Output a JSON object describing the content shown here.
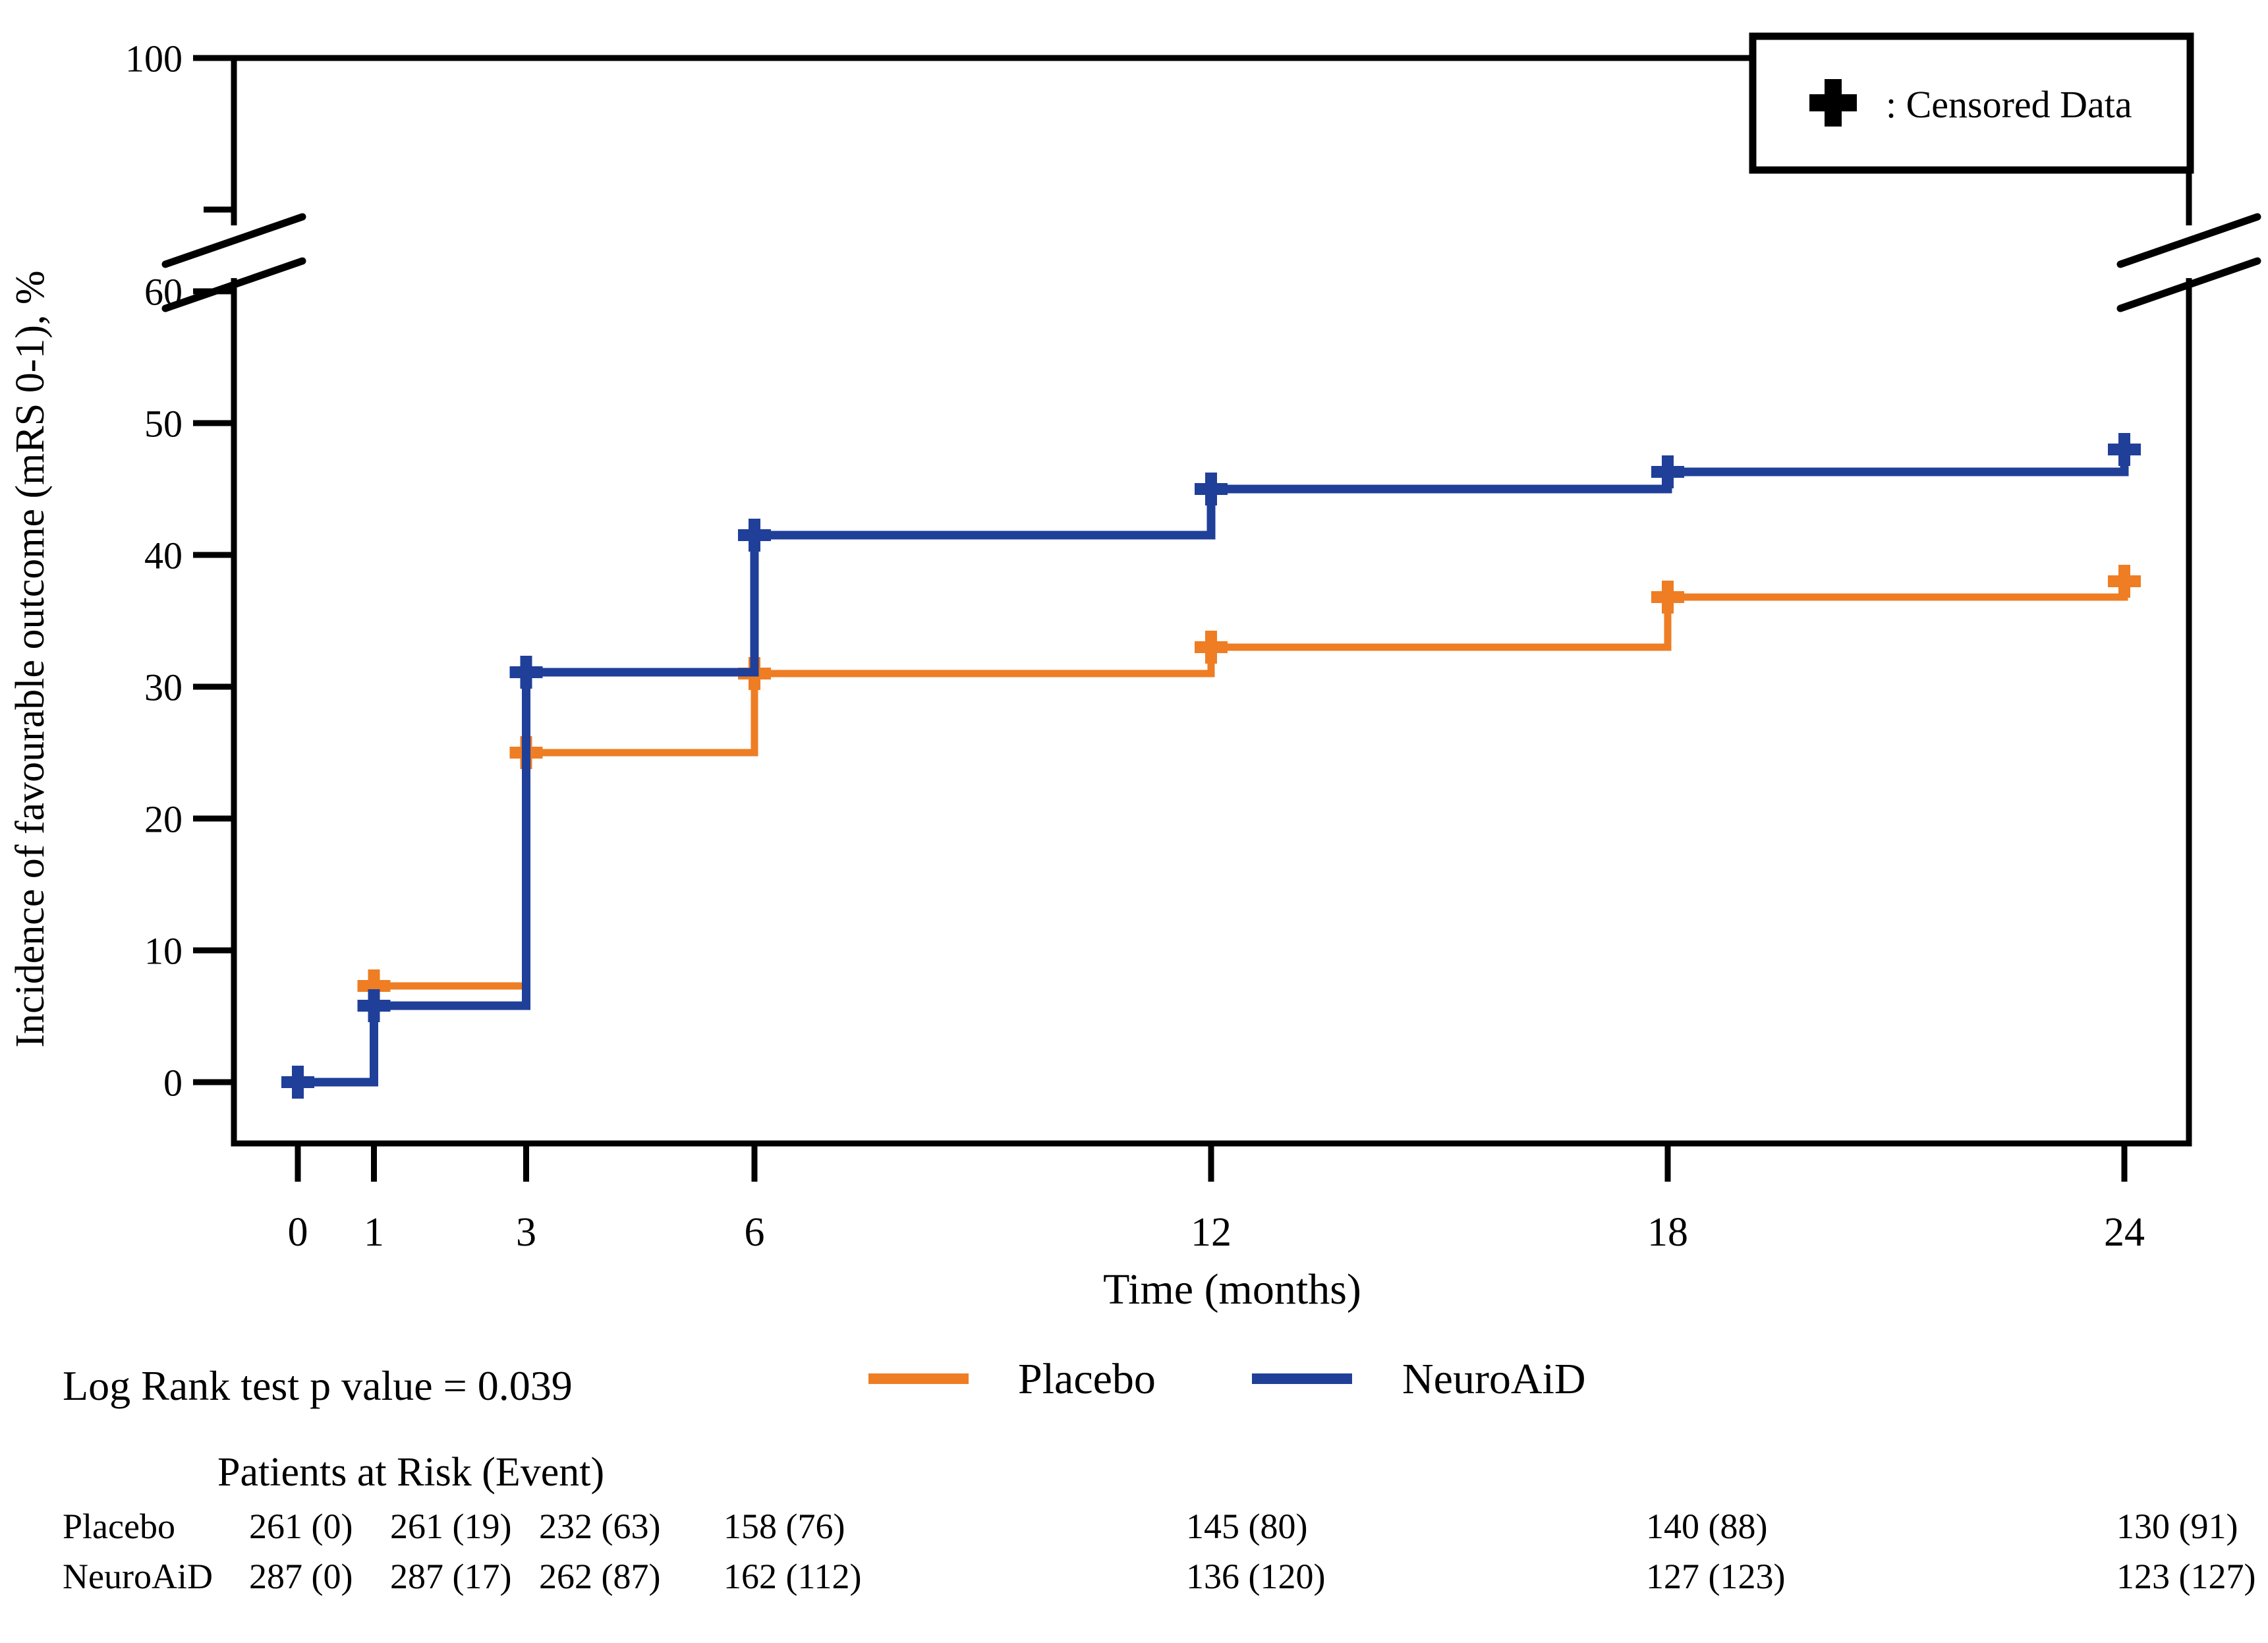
{
  "chart_data": {
    "type": "line",
    "subtype": "kaplan_meier_step",
    "title": "",
    "xlabel": "Time (months)",
    "ylabel": "Incidence of favourable outcome (mRS 0-1), %",
    "x_ticks": [
      0,
      1,
      3,
      6,
      12,
      18,
      24
    ],
    "y_ticks": [
      0,
      10,
      20,
      30,
      40,
      50,
      60
    ],
    "y_axis_break": {
      "after": 60,
      "top_label": 100
    },
    "grid": false,
    "legend_position": "bottom-center",
    "censored_legend": {
      "symbol": "+",
      "label": ": Censored Data"
    },
    "series": [
      {
        "name": "Placebo",
        "color": "#EE7D23",
        "x": [
          0,
          1,
          3,
          6,
          12,
          18,
          24
        ],
        "y": [
          0,
          7.3,
          25,
          31,
          33,
          36.8,
          38
        ],
        "censored_points": [
          [
            0,
            0
          ],
          [
            1,
            7.3
          ],
          [
            3,
            25
          ],
          [
            6,
            31
          ],
          [
            12,
            33
          ],
          [
            18,
            36.8
          ],
          [
            24,
            38
          ]
        ]
      },
      {
        "name": "NeuroAiD",
        "color": "#1F3F99",
        "x": [
          0,
          1,
          3,
          6,
          12,
          18,
          24
        ],
        "y": [
          0,
          5.8,
          31.1,
          41.5,
          45,
          46.3,
          48
        ],
        "censored_points": [
          [
            0,
            0
          ],
          [
            1,
            5.8
          ],
          [
            3,
            31.1
          ],
          [
            6,
            41.5
          ],
          [
            12,
            45
          ],
          [
            18,
            46.3
          ],
          [
            24,
            48
          ]
        ]
      }
    ]
  },
  "stats": {
    "log_rank_label": "Log Rank test p value = 0.039"
  },
  "risk_table": {
    "title": "Patients at Risk (Event)",
    "time_points": [
      0,
      1,
      3,
      6,
      12,
      18,
      24
    ],
    "rows": [
      {
        "label": "Placebo",
        "values": [
          "261 (0)",
          "261 (19)",
          "232 (63)",
          "158 (76)",
          "145 (80)",
          "140 (88)",
          "130 (91)"
        ]
      },
      {
        "label": "NeuroAiD",
        "values": [
          "287 (0)",
          "287 (17)",
          "262 (87)",
          "162 (112)",
          "136 (120)",
          "127 (123)",
          "123 (127)"
        ]
      }
    ]
  }
}
